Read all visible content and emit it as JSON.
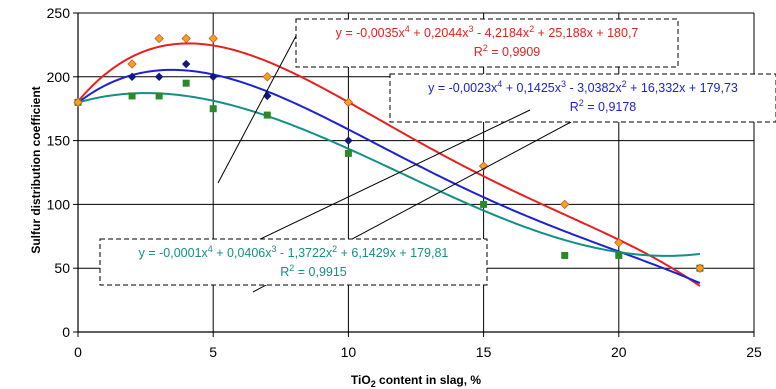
{
  "chart_data": {
    "type": "scatter",
    "title": "",
    "xlabel_main": "TiO",
    "xlabel_sub": "2",
    "xlabel_rest": " content in slag, %",
    "ylabel": "Sulfur distribution coefficient",
    "xlim": [
      0,
      25
    ],
    "ylim": [
      0,
      250
    ],
    "x_ticks": [
      "0",
      "5",
      "10",
      "15",
      "20",
      "25"
    ],
    "y_ticks": [
      "0",
      "50",
      "100",
      "150",
      "200",
      "250"
    ],
    "grid": "horizontal and vertical major gridlines",
    "series": [
      {
        "color": "#e8201e",
        "marker_color": "#f5a21a",
        "marker": "diamond",
        "points": [
          [
            0,
            180
          ],
          [
            2,
            210
          ],
          [
            3,
            230
          ],
          [
            4,
            230
          ],
          [
            5,
            230
          ],
          [
            7,
            200
          ],
          [
            10,
            180
          ],
          [
            15,
            130
          ],
          [
            18,
            100
          ],
          [
            20,
            70
          ],
          [
            23,
            50
          ]
        ],
        "trend_coeffs": [
          180.7,
          25.188,
          -4.2184,
          0.2044,
          -0.0035
        ],
        "equation": "y = -0,0035x4 + 0,2044x3 - 4,2184x2 + 25,188x + 180,7",
        "r2": "R2 = 0,9909"
      },
      {
        "color": "#1c22d4",
        "marker_color": "#101880",
        "marker": "diamond",
        "points": [
          [
            0,
            180
          ],
          [
            2,
            200
          ],
          [
            3,
            200
          ],
          [
            4,
            210
          ],
          [
            5,
            200
          ],
          [
            7,
            185
          ],
          [
            10,
            150
          ]
        ],
        "trend_coeffs": [
          179.73,
          16.332,
          -3.0382,
          0.1425,
          -0.0023
        ],
        "equation": "y = -0,0023x4 + 0,1425x3 - 3,0382x2 + 16,332x + 179,73",
        "r2": "R2 = 0,9178"
      },
      {
        "color": "#138f87",
        "marker_color": "#2a8a2a",
        "marker": "square",
        "points": [
          [
            0,
            180
          ],
          [
            2,
            185
          ],
          [
            3,
            185
          ],
          [
            4,
            195
          ],
          [
            5,
            175
          ],
          [
            7,
            170
          ],
          [
            10,
            140
          ],
          [
            15,
            100
          ],
          [
            18,
            60
          ],
          [
            20,
            60
          ],
          [
            23,
            50
          ]
        ],
        "trend_coeffs": [
          179.81,
          6.1429,
          -1.3722,
          0.0406,
          -0.0001
        ],
        "equation": "y = -0,0001x4 + 0,0406x3 - 1,3722x2 + 6,1429x + 179,81",
        "r2": "R2 = 0,9915"
      }
    ]
  }
}
